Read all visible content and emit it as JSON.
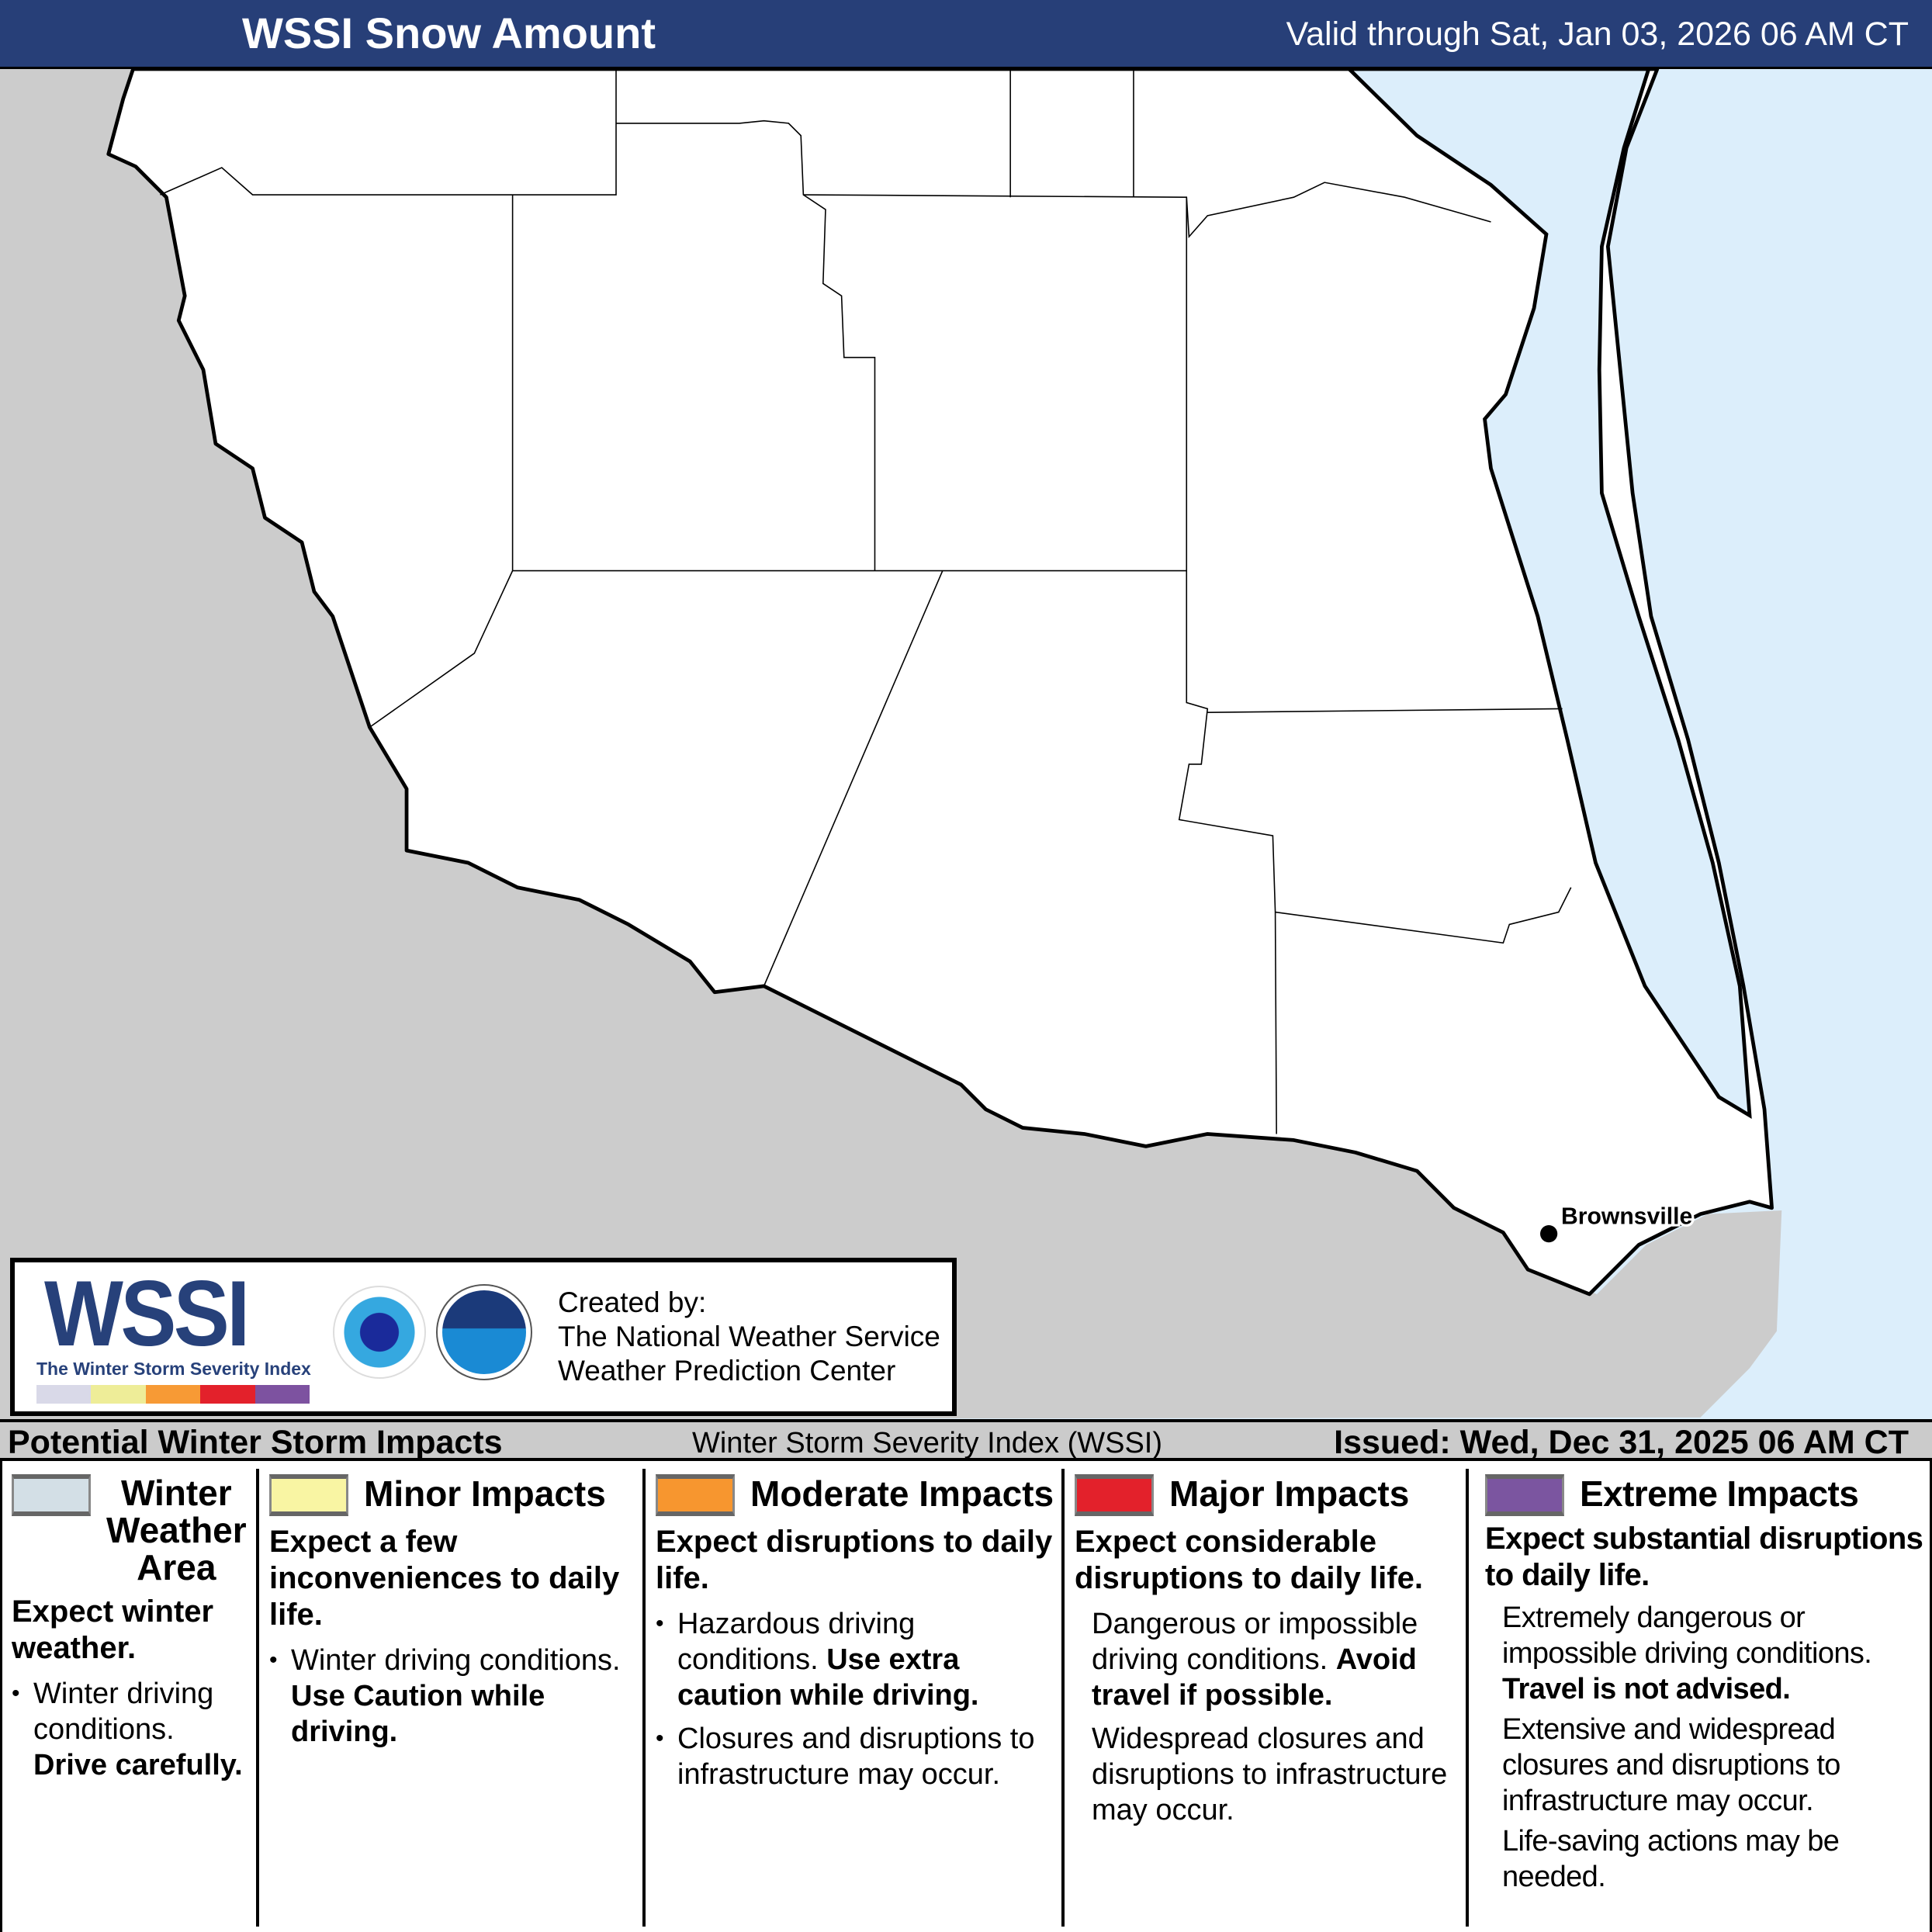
{
  "header": {
    "title": "WSSI Snow Amount",
    "valid": "Valid through Sat, Jan 03, 2026 06 AM CT"
  },
  "map": {
    "city": "Brownsville",
    "colors": {
      "land_us": "#ffffff",
      "land_mexico": "#cccccc",
      "water": "#dceefb",
      "header": "#273f78"
    }
  },
  "logo": {
    "wssi": "WSSI",
    "wssi_tm": "TM",
    "subtitle": "The Winter Storm Severity Index",
    "nws_seal": "NATIONAL WEATHER SERVICE",
    "noaa_seal": "NOAA",
    "created": [
      "Created by:",
      "The National Weather Service",
      "Weather Prediction Center"
    ],
    "scale_colors": [
      "#d9d9e8",
      "#eeed98",
      "#f79a35",
      "#e3212b",
      "#7d52a0"
    ]
  },
  "bar": {
    "left": "Potential Winter Storm Impacts",
    "middle": "Winter Storm Severity Index (WSSI)",
    "right": "Issued: Wed, Dec 31, 2025 06 AM CT"
  },
  "legend": [
    {
      "label": "Winter Weather Area",
      "label_lines": [
        "Winter",
        "Weather",
        "Area"
      ],
      "color": "#d3dfe6",
      "headline": "Expect winter weather.",
      "bullet_text": "Winter driving conditions.",
      "bullet_bold": "Drive carefully."
    },
    {
      "label": "Minor Impacts",
      "color": "#f9f5a3",
      "headline": "Expect a few inconveniences to daily life.",
      "bullet_text": "Winter driving conditions.",
      "bullet_bold": "Use Caution while driving."
    },
    {
      "label": "Moderate Impacts",
      "color": "#f7962f",
      "headline": "Expect disruptions to daily life.",
      "bullet_text": "Hazardous driving conditions.",
      "bullet_bold": "Use extra caution while driving.",
      "bullet2": "Closures and disruptions to infrastructure may occur."
    },
    {
      "label": "Major Impacts",
      "color": "#e3212b",
      "headline": "Expect considerable disruptions to daily life.",
      "p1": "Dangerous or impossible driving conditions.",
      "p1_bold": "Avoid travel if possible.",
      "p2": "Widespread closures and disruptions to infrastructure may occur."
    },
    {
      "label": "Extreme Impacts",
      "color": "#7b55a0",
      "headline": "Expect substantial disruptions to daily life.",
      "p1": "Extremely dangerous or impossible driving conditions.",
      "p1_bold": "Travel is not advised.",
      "p2": "Extensive and widespread closures and disruptions to infrastructure may occur.",
      "p3": "Life-saving actions may be needed."
    }
  ]
}
